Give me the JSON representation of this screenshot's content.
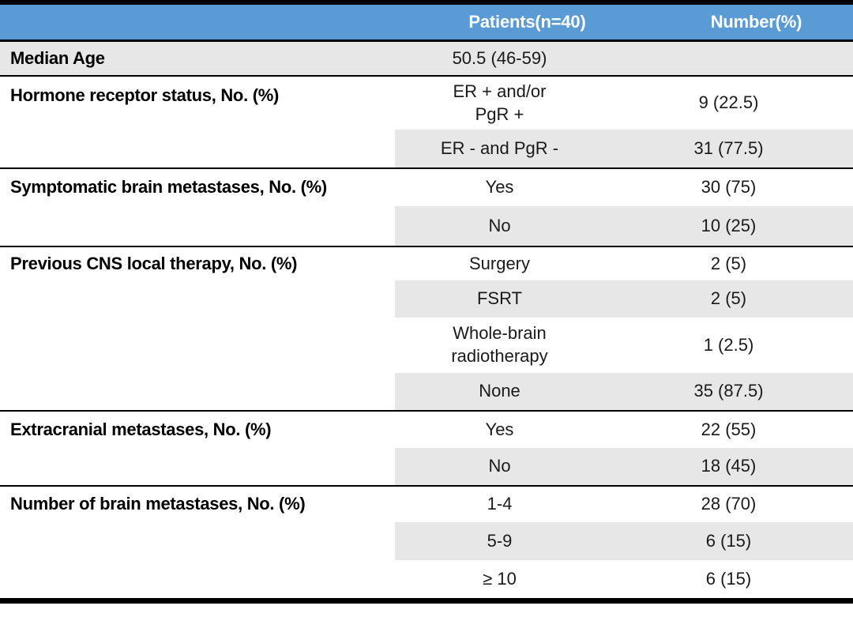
{
  "table": {
    "header": {
      "patients": "Patients(n=40)",
      "number": "Number(%)"
    },
    "colors": {
      "header_bg": "#5b9bd5",
      "header_text": "#ffffff",
      "row_stripe": "#e8e7e7",
      "border": "#000000"
    },
    "sections": [
      {
        "label": "Median Age",
        "rows": [
          {
            "cat": "50.5 (46-59)",
            "num": ""
          }
        ]
      },
      {
        "label": "Hormone receptor status, No. (%)",
        "rows": [
          {
            "cat": "ER + and/or\nPgR +",
            "num": "9 (22.5)"
          },
          {
            "cat": "ER - and PgR -",
            "num": "31 (77.5)"
          }
        ]
      },
      {
        "label": "Symptomatic brain metastases, No. (%)",
        "rows": [
          {
            "cat": "Yes",
            "num": "30 (75)"
          },
          {
            "cat": "No",
            "num": "10 (25)"
          }
        ]
      },
      {
        "label": "Previous CNS local therapy, No. (%)",
        "rows": [
          {
            "cat": "Surgery",
            "num": "2 (5)"
          },
          {
            "cat": "FSRT",
            "num": "2 (5)"
          },
          {
            "cat": "Whole-brain\nradiotherapy",
            "num": "1 (2.5)"
          },
          {
            "cat": "None",
            "num": "35 (87.5)"
          }
        ]
      },
      {
        "label": "Extracranial metastases, No. (%)",
        "rows": [
          {
            "cat": "Yes",
            "num": "22 (55)"
          },
          {
            "cat": "No",
            "num": "18 (45)"
          }
        ]
      },
      {
        "label": "Number of brain metastases, No. (%)",
        "rows": [
          {
            "cat": "1-4",
            "num": "28 (70)"
          },
          {
            "cat": "5-9",
            "num": "6 (15)"
          },
          {
            "cat": "≥ 10",
            "num": "6 (15)"
          }
        ]
      }
    ]
  }
}
